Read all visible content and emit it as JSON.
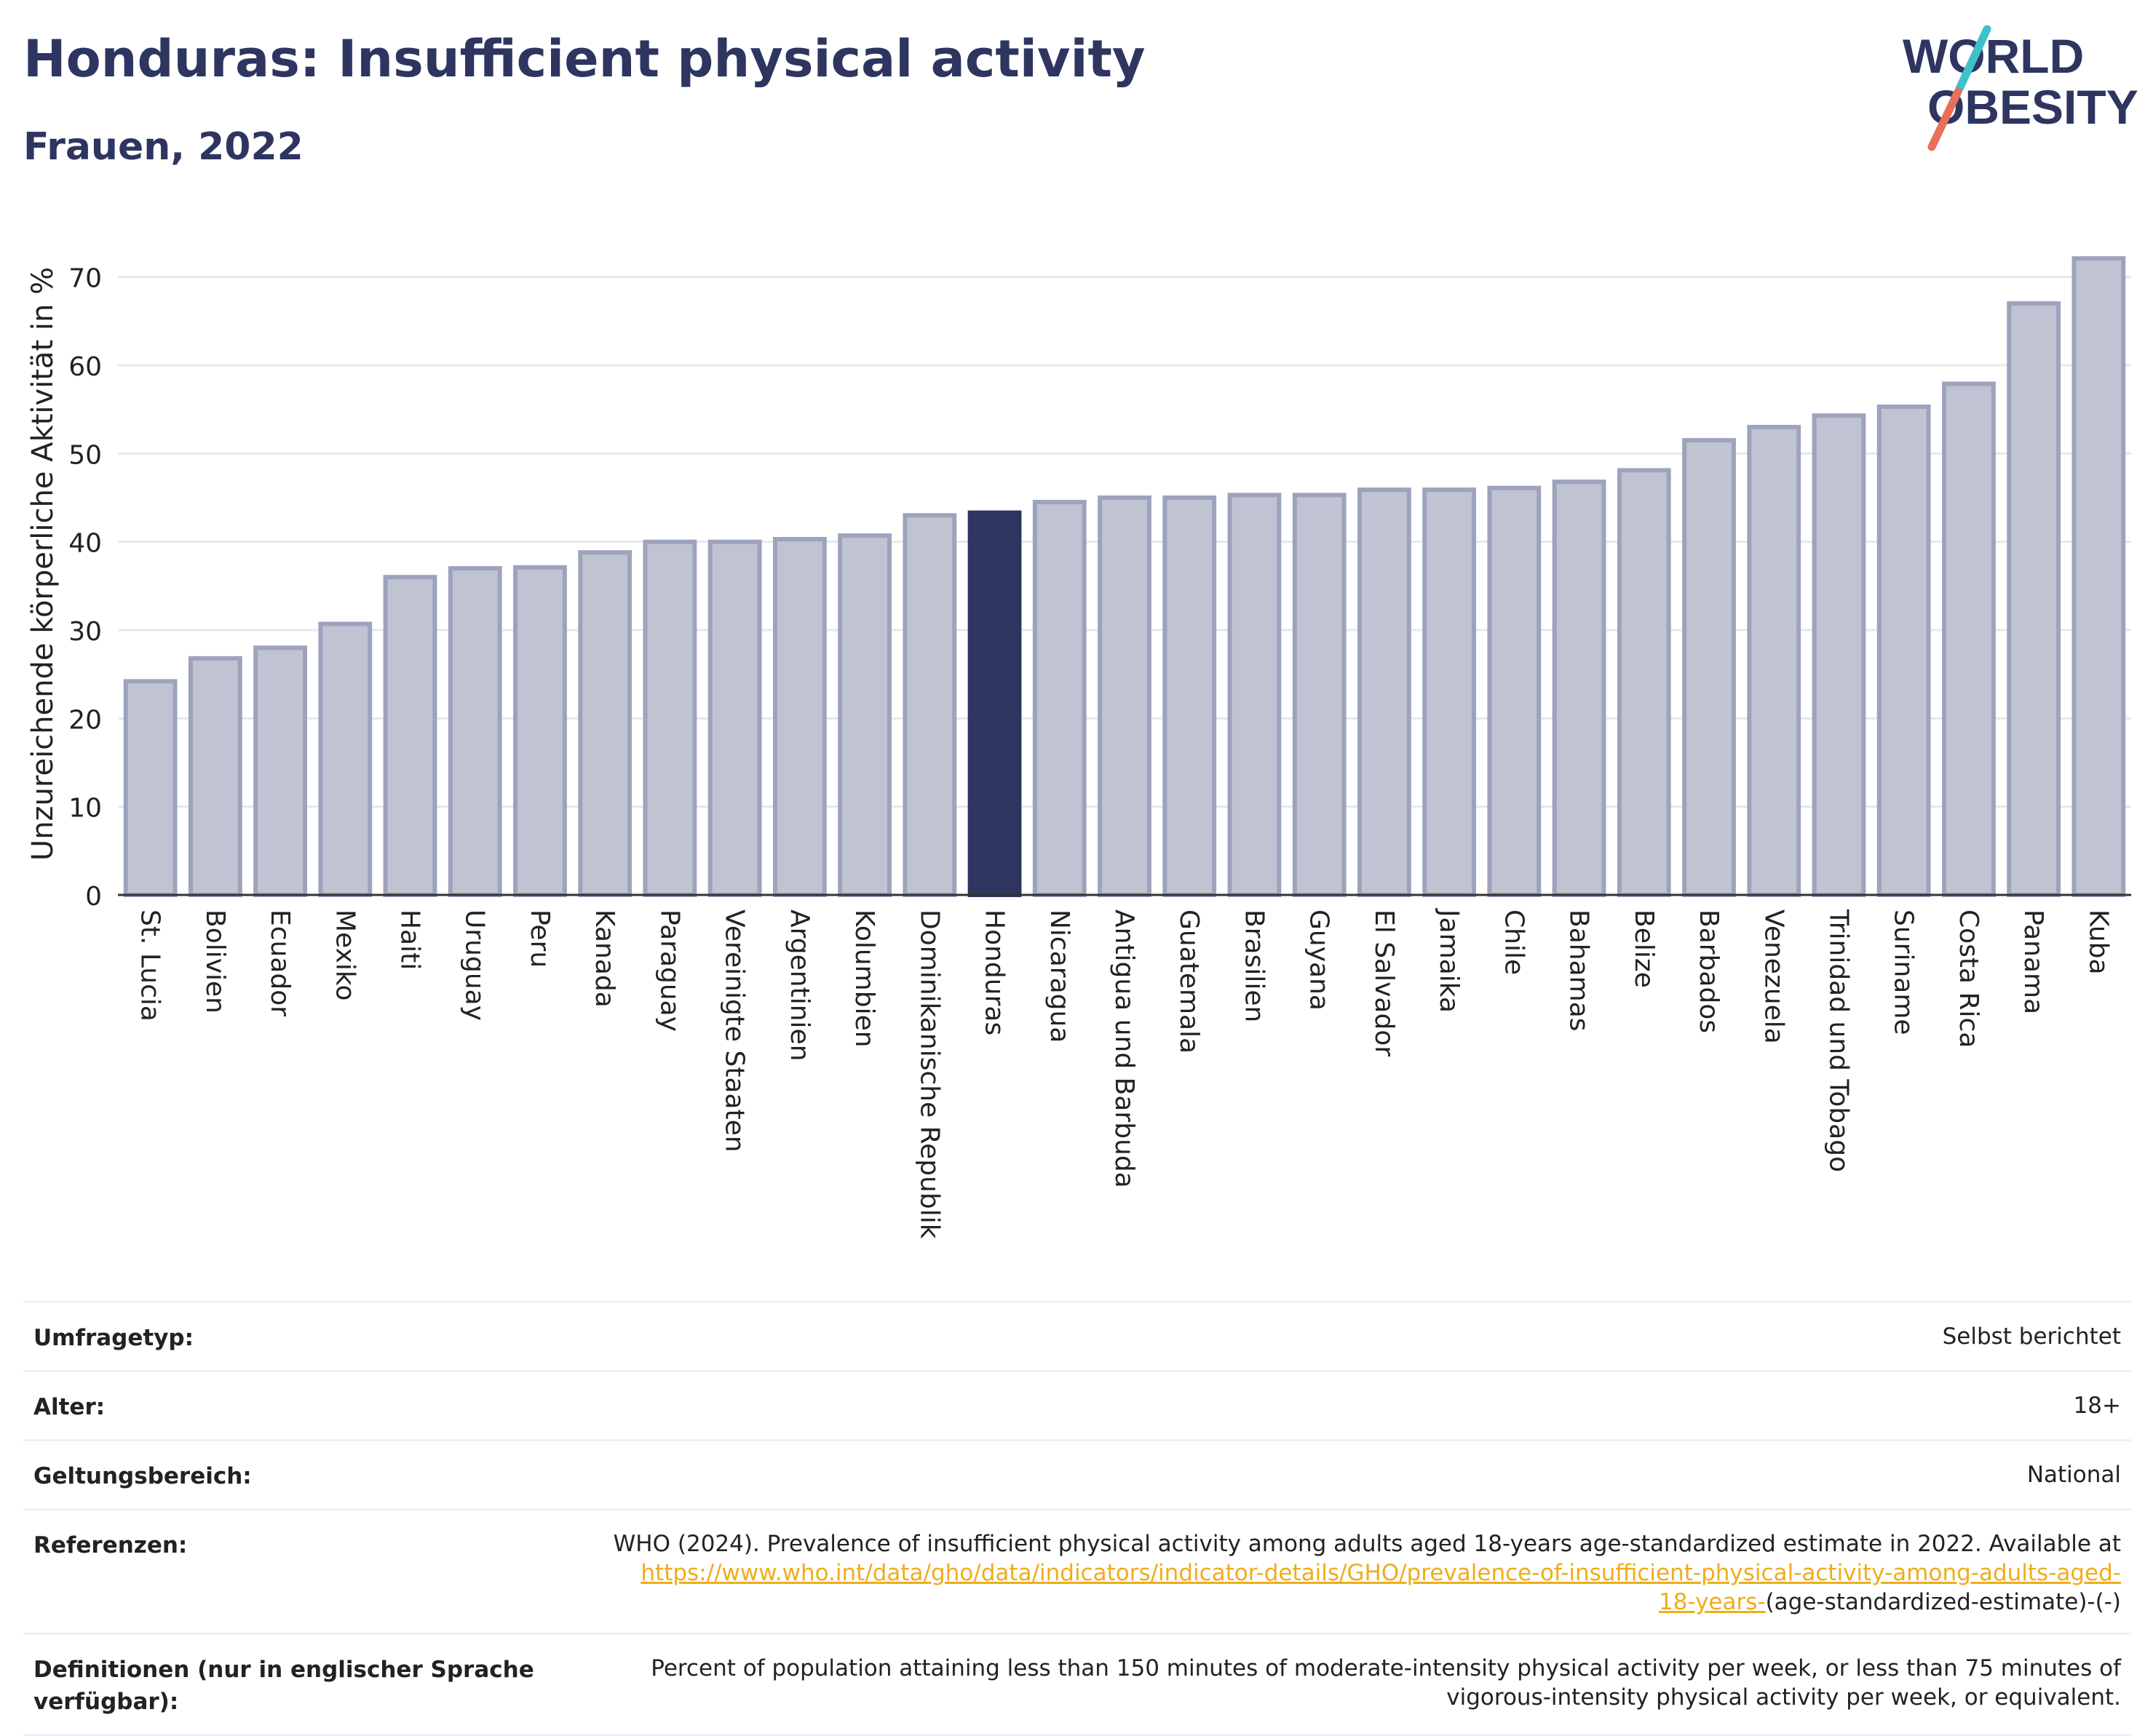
{
  "header": {
    "title": "Honduras: Insufficient physical activity",
    "subtitle": "Frauen, 2022"
  },
  "logo": {
    "line1": "WORLD",
    "line2": "OBESITY",
    "text_color": "#2d3560",
    "slash_colors": [
      "#3ec1c9",
      "#e8705a"
    ]
  },
  "colors": {
    "bar": "#bfc3d2",
    "bar_stroke": "#9da3bd",
    "highlight": "#2d3560",
    "grid": "#e6e8f0",
    "link": "#f0ac1a"
  },
  "chart_data": {
    "type": "bar",
    "ylabel": "Unzureichende körperliche Aktivität in %",
    "xlabel": "",
    "ylim": [
      0,
      75
    ],
    "yticks": [
      0,
      10,
      20,
      30,
      40,
      50,
      60,
      70
    ],
    "grid": true,
    "highlight": "Honduras",
    "categories": [
      "St. Lucia",
      "Bolivien",
      "Ecuador",
      "Mexiko",
      "Haiti",
      "Uruguay",
      "Peru",
      "Kanada",
      "Paraguay",
      "Vereinigte Staaten",
      "Argentinien",
      "Kolumbien",
      "Dominikanische Republik",
      "Honduras",
      "Nicaragua",
      "Antigua und Barbuda",
      "Guatemala",
      "Brasilien",
      "Guyana",
      "El Salvador",
      "Jamaika",
      "Chile",
      "Bahamas",
      "Belize",
      "Barbados",
      "Venezuela",
      "Trinidad und Tobago",
      "Suriname",
      "Costa Rica",
      "Panama",
      "Kuba"
    ],
    "values": [
      24.2,
      26.8,
      28.0,
      30.7,
      36.0,
      37.0,
      37.1,
      38.8,
      40.0,
      40.0,
      40.3,
      40.7,
      43.0,
      43.3,
      44.5,
      45.0,
      45.0,
      45.3,
      45.3,
      45.9,
      45.9,
      46.1,
      46.8,
      48.1,
      51.5,
      53.0,
      54.3,
      55.3,
      57.9,
      67.0,
      72.1
    ]
  },
  "metadata": [
    {
      "label": "Umfragetyp:",
      "value": "Selbst berichtet"
    },
    {
      "label": "Alter:",
      "value": "18+"
    },
    {
      "label": "Geltungsbereich:",
      "value": "National"
    }
  ],
  "references": {
    "label": "Referenzen:",
    "text": "WHO (2024). Prevalence of insufficient physical activity among adults aged 18-years age-standardized estimate in 2022. Available at",
    "link_line1": "https://www.who.int/data/gho/data/indicators/indicator-details/GHO/prevalence-of-insufficient-physical-activity-among-adults-aged-",
    "link_line2": "18-years-",
    "suffix": "(age-standardized-estimate)-(-)"
  },
  "definitions": {
    "label": "Definitionen (nur in englischer Sprache verfügbar):",
    "line1": "Percent of population attaining less than 150 minutes of moderate-intensity physical activity per week, or less than 75 minutes of",
    "line2": "vigorous-intensity physical activity per week, or equivalent."
  }
}
